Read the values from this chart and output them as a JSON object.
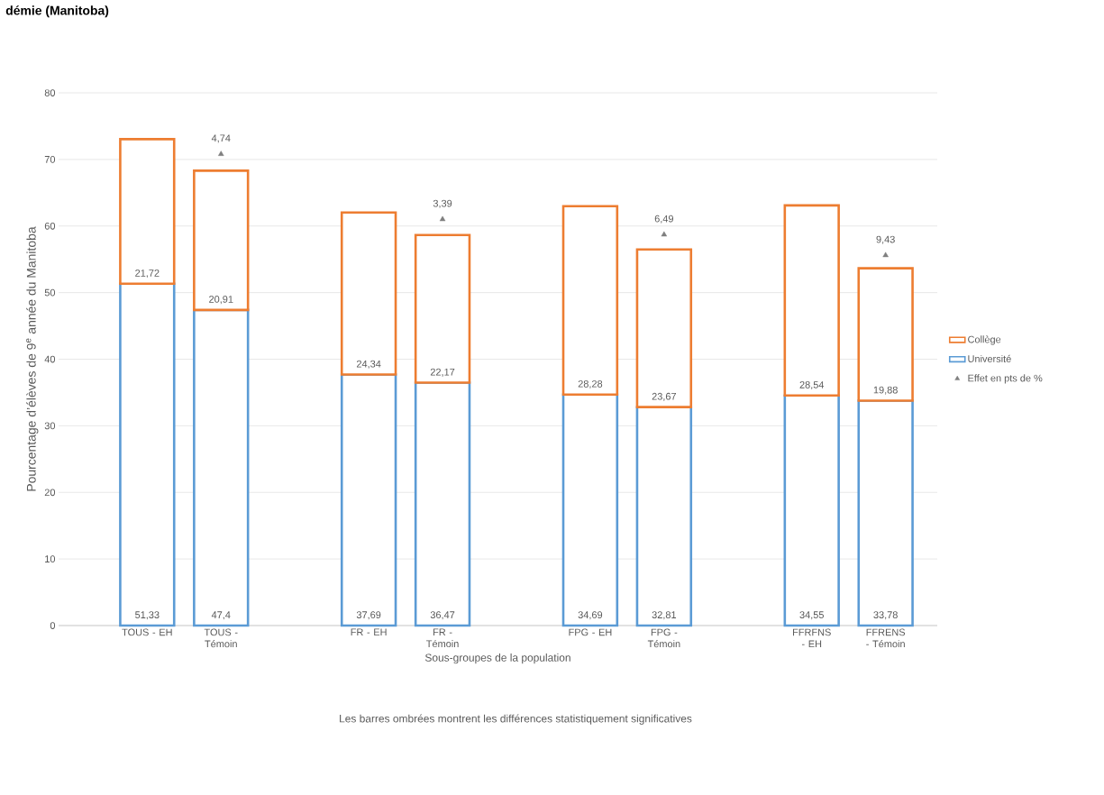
{
  "chart_data": {
    "type": "bar",
    "title": "démie (Manitoba)",
    "stacked": true,
    "categories": [
      "TOUS - EH",
      "TOUS - Témoin",
      null,
      "FR - EH",
      "FR - Témoin",
      null,
      "FPG - EH",
      "FPG - Témoin",
      null,
      "FFRFNS - EH",
      "FFRENS - Témoin"
    ],
    "series": [
      {
        "name": "Université",
        "color": "#5b9bd5",
        "values": [
          51.33,
          47.4,
          null,
          37.69,
          36.47,
          null,
          34.69,
          32.81,
          null,
          34.55,
          33.78
        ],
        "value_labels": [
          "51,33",
          "47,4",
          null,
          "37,69",
          "36,47",
          null,
          "34,69",
          "32,81",
          null,
          "34,55",
          "33,78"
        ]
      },
      {
        "name": "Collège",
        "color": "#ed7d31",
        "values": [
          21.72,
          20.91,
          null,
          24.34,
          22.17,
          null,
          28.28,
          23.67,
          null,
          28.54,
          19.88
        ],
        "value_labels": [
          "21,72",
          "20,91",
          null,
          "24,34",
          "22,17",
          null,
          "28,28",
          "23,67",
          null,
          "28,54",
          "19,88"
        ]
      },
      {
        "name": "Effet en pts de %",
        "type": "scatter",
        "marker": "triangle",
        "color": "#7f7f7f",
        "values": [
          null,
          70.8,
          null,
          null,
          61.0,
          null,
          null,
          58.7,
          null,
          null,
          55.6
        ]
      }
    ],
    "xlabel": "Sous-groupes de la population",
    "ylabel": "Pourcentage d’élèves de 9$^{e}$ année du Manitoba",
    "annotations": [
      "Les barres ombrées montrent les différences statistiquement significatives",
      {
        "text": "4,74",
        "x": "TOUS - Témoin",
        "y": 70.8
      },
      {
        "text": "3,39",
        "x": "FR - Témoin",
        "y": 61.0
      },
      {
        "text": "6,49",
        "x": "FPG - Témoin",
        "y": 58.7
      },
      {
        "text": "9,43",
        "x": "FFRENS - Témoin",
        "y": 55.6
      }
    ],
    "ylim": [
      0,
      80
    ],
    "yticks": [
      0,
      10,
      20,
      30,
      40,
      50,
      60,
      70,
      80
    ],
    "grid": "y",
    "legend": "right"
  }
}
